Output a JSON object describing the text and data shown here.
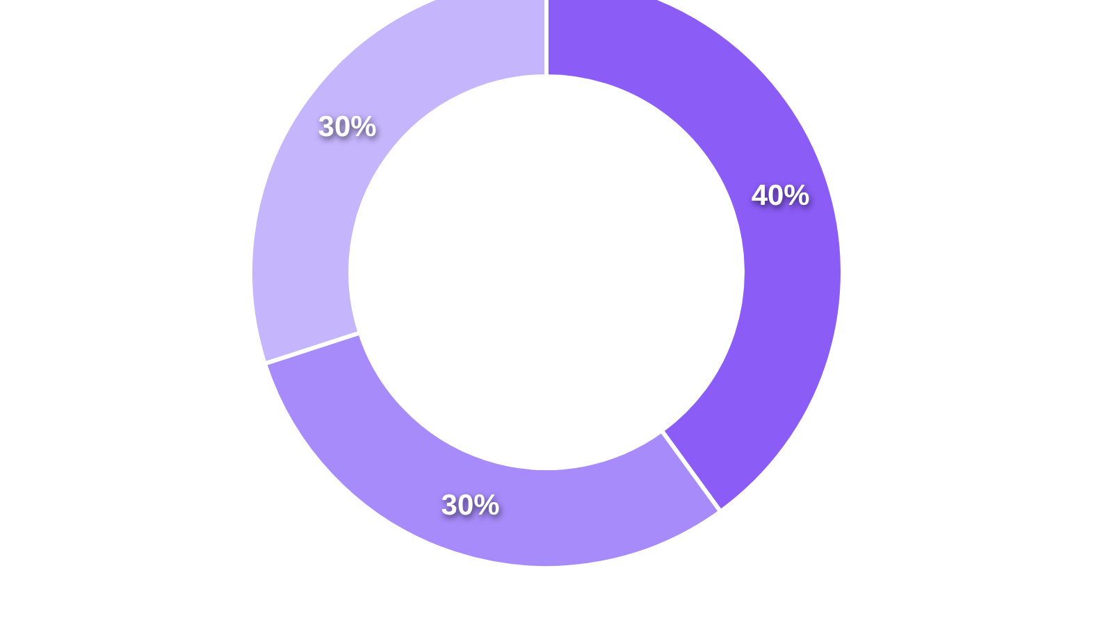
{
  "chart_data": {
    "type": "donut",
    "categories": [
      null,
      null,
      null
    ],
    "values": [
      40,
      30,
      30
    ],
    "colors": [
      "#8b5cf6",
      "#a78bfa",
      "#c4b5fd"
    ],
    "value_labels": [
      "40%",
      "30%",
      "30%"
    ]
  }
}
